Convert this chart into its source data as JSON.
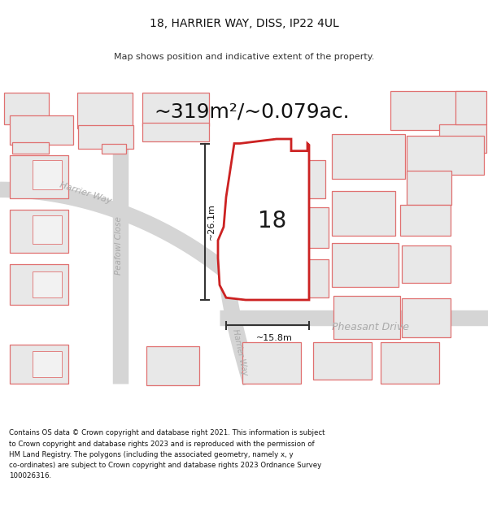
{
  "title": "18, HARRIER WAY, DISS, IP22 4UL",
  "subtitle": "Map shows position and indicative extent of the property.",
  "area_text": "~319m²/~0.079ac.",
  "dim1_text": "~26.1m",
  "dim2_text": "~15.8m",
  "label_18": "18",
  "road_label_harrier_upper": "Harrier Way",
  "road_label_harrier_lower": "Harrier Way",
  "road_label_peafowl": "Peafowl Close",
  "road_label_pheasant": "Pheasant Drive",
  "footer_text": "Contains OS data © Crown copyright and database right 2021. This information is subject to Crown copyright and database rights 2023 and is reproduced with the permission of HM Land Registry. The polygons (including the associated geometry, namely x, y co-ordinates) are subject to Crown copyright and database rights 2023 Ordnance Survey 100026316.",
  "bg_color": "#ffffff",
  "plot_color": "#cc2222",
  "outline_color": "#e07070",
  "grey_fill": "#e8e8e8",
  "road_outline": "#cccccc",
  "dim_color": "#333333",
  "label_color": "#1a1a1a",
  "road_text_color": "#aaaaaa",
  "footer_color": "#111111",
  "title_fontsize": 10,
  "subtitle_fontsize": 8,
  "area_fontsize": 18,
  "number_fontsize": 20,
  "road_fontsize": 8,
  "footer_fontsize": 6.2,
  "dim_fontsize": 8
}
